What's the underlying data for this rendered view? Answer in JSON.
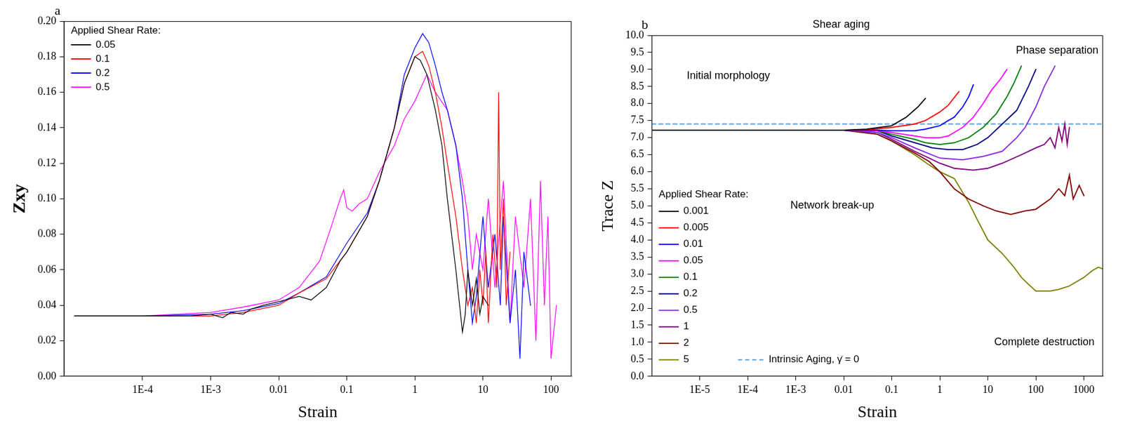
{
  "chart_data": [
    {
      "type": "line",
      "panel_label": "a",
      "x_label": "Strain",
      "y_label": "Zxy",
      "legend_title": "Applied Shear Rate:",
      "log": "x",
      "grid": false,
      "legend": "upper left",
      "xlim": [
        7e-06,
        200
      ],
      "xticks": [
        {
          "value": 0.0001,
          "label": "1E-4"
        },
        {
          "value": 0.001,
          "label": "1E-3"
        },
        0.01,
        0.1,
        1,
        10,
        100
      ],
      "ylim": [
        0,
        0.2
      ],
      "yticks": [
        {
          "value": 0,
          "label": "0.00"
        },
        0.02,
        0.04,
        0.06,
        0.08,
        {
          "value": 0.1,
          "label": "0.10"
        },
        0.12,
        0.14,
        0.16,
        0.18,
        {
          "value": 0.2,
          "label": "0.20"
        }
      ],
      "series": [
        {
          "name": "0.05",
          "color": "#000000",
          "x": [
            1e-05,
            0.0001,
            0.0005,
            0.001,
            0.0015,
            0.002,
            0.003,
            0.004,
            0.006,
            0.01,
            0.02,
            0.03,
            0.05,
            0.08,
            0.1,
            0.2,
            0.3,
            0.5,
            0.7,
            1.0,
            1.2,
            1.5,
            2,
            2.5,
            3,
            4,
            5,
            5.5,
            6,
            7,
            8,
            9,
            10,
            12
          ],
          "values": [
            0.034,
            0.034,
            0.034,
            0.035,
            0.033,
            0.036,
            0.035,
            0.038,
            0.04,
            0.042,
            0.045,
            0.043,
            0.05,
            0.065,
            0.07,
            0.09,
            0.11,
            0.14,
            0.165,
            0.18,
            0.178,
            0.17,
            0.15,
            0.13,
            0.1,
            0.06,
            0.025,
            0.035,
            0.06,
            0.04,
            0.055,
            0.035,
            0.045,
            0.04
          ]
        },
        {
          "name": "0.1",
          "color": "#ff0000",
          "x": [
            1e-05,
            0.0001,
            0.001,
            0.003,
            0.01,
            0.02,
            0.05,
            0.1,
            0.2,
            0.3,
            0.5,
            0.7,
            1.0,
            1.3,
            1.6,
            2,
            2.5,
            3,
            4,
            5,
            6,
            7,
            8,
            9,
            10,
            11,
            12,
            14,
            16,
            17,
            18,
            20,
            22,
            25
          ],
          "values": [
            0.034,
            0.034,
            0.034,
            0.036,
            0.04,
            0.047,
            0.055,
            0.07,
            0.09,
            0.11,
            0.14,
            0.165,
            0.18,
            0.183,
            0.175,
            0.16,
            0.14,
            0.12,
            0.09,
            0.06,
            0.04,
            0.05,
            0.03,
            0.06,
            0.04,
            0.07,
            0.03,
            0.08,
            0.05,
            0.16,
            0.06,
            0.1,
            0.04,
            0.07
          ]
        },
        {
          "name": "0.2",
          "color": "#0000ff",
          "x": [
            1e-05,
            0.0001,
            0.001,
            0.003,
            0.01,
            0.02,
            0.05,
            0.1,
            0.2,
            0.3,
            0.5,
            0.7,
            1.0,
            1.3,
            1.6,
            2,
            2.5,
            3,
            4,
            5,
            6,
            7,
            8,
            10,
            12,
            15,
            18,
            20,
            25,
            30,
            35,
            40,
            50
          ],
          "values": [
            0.034,
            0.034,
            0.035,
            0.037,
            0.041,
            0.047,
            0.056,
            0.075,
            0.092,
            0.11,
            0.14,
            0.17,
            0.185,
            0.193,
            0.188,
            0.175,
            0.16,
            0.15,
            0.13,
            0.1,
            0.06,
            0.03,
            0.045,
            0.09,
            0.05,
            0.08,
            0.04,
            0.09,
            0.03,
            0.06,
            0.01,
            0.07,
            0.04
          ]
        },
        {
          "name": "0.5",
          "color": "#ff00ff",
          "x": [
            1e-05,
            0.0001,
            0.001,
            0.003,
            0.01,
            0.02,
            0.04,
            0.06,
            0.08,
            0.09,
            0.1,
            0.12,
            0.15,
            0.2,
            0.3,
            0.5,
            0.7,
            1.0,
            1.5,
            2,
            3,
            4,
            5,
            6,
            7,
            8,
            10,
            12,
            15,
            20,
            25,
            30,
            40,
            50,
            60,
            70,
            80,
            90,
            100,
            120
          ],
          "values": [
            0.034,
            0.034,
            0.036,
            0.039,
            0.043,
            0.05,
            0.065,
            0.085,
            0.1,
            0.105,
            0.095,
            0.093,
            0.097,
            0.1,
            0.115,
            0.13,
            0.145,
            0.155,
            0.17,
            0.16,
            0.15,
            0.13,
            0.11,
            0.09,
            0.06,
            0.08,
            0.06,
            0.1,
            0.05,
            0.11,
            0.03,
            0.09,
            0.05,
            0.1,
            0.02,
            0.11,
            0.04,
            0.09,
            0.01,
            0.04
          ]
        }
      ]
    },
    {
      "type": "line",
      "panel_label": "b",
      "x_label": "Strain",
      "y_label": "Trace Z",
      "legend_title": "Applied Shear Rate:",
      "log": "x",
      "grid": false,
      "legend": "lower left",
      "annotations": [
        "Initial morphology",
        "Shear aging",
        "Phase separation",
        "Network break-up",
        "Complete destruction"
      ],
      "xlim": [
        1e-06,
        2500
      ],
      "xticks": [
        {
          "value": 1e-05,
          "label": "1E-5"
        },
        {
          "value": 0.0001,
          "label": "1E-4"
        },
        {
          "value": 0.001,
          "label": "1E-3"
        },
        0.01,
        0.1,
        1,
        10,
        100,
        1000
      ],
      "ylim": [
        0,
        10
      ],
      "yticks": [
        {
          "value": 0,
          "label": "0.0"
        },
        0.5,
        {
          "value": 1,
          "label": "1.0"
        },
        1.5,
        {
          "value": 2,
          "label": "2.0"
        },
        2.5,
        {
          "value": 3,
          "label": "3.0"
        },
        3.5,
        {
          "value": 4,
          "label": "4.0"
        },
        4.5,
        {
          "value": 5,
          "label": "5.0"
        },
        5.5,
        {
          "value": 6,
          "label": "6.0"
        },
        6.5,
        {
          "value": 7,
          "label": "7.0"
        },
        7.5,
        {
          "value": 8,
          "label": "8.0"
        },
        8.5,
        {
          "value": 9,
          "label": "9.0"
        },
        9.5,
        {
          "value": 10,
          "label": "10.0"
        }
      ],
      "series": [
        {
          "name": "0.001",
          "color": "#000000",
          "x": [
            1e-06,
            1e-05,
            0.0001,
            0.001,
            0.01,
            0.03,
            0.1,
            0.2,
            0.35,
            0.5
          ],
          "values": [
            7.22,
            7.22,
            7.22,
            7.22,
            7.22,
            7.25,
            7.35,
            7.6,
            7.9,
            8.15
          ]
        },
        {
          "name": "0.005",
          "color": "#ff0000",
          "x": [
            1e-06,
            1e-05,
            0.0001,
            0.001,
            0.01,
            0.03,
            0.1,
            0.3,
            0.5,
            1,
            1.5,
            2.5
          ],
          "values": [
            7.22,
            7.22,
            7.22,
            7.22,
            7.22,
            7.23,
            7.3,
            7.4,
            7.5,
            7.75,
            7.95,
            8.35
          ]
        },
        {
          "name": "0.01",
          "color": "#0000ff",
          "x": [
            1e-06,
            1e-05,
            0.0001,
            0.001,
            0.01,
            0.05,
            0.1,
            0.3,
            0.5,
            1,
            1.5,
            2,
            3,
            4,
            5
          ],
          "values": [
            7.22,
            7.22,
            7.22,
            7.22,
            7.22,
            7.22,
            7.2,
            7.2,
            7.25,
            7.35,
            7.5,
            7.6,
            7.9,
            8.2,
            8.55
          ]
        },
        {
          "name": "0.05",
          "color": "#ff00ff",
          "x": [
            1e-06,
            1e-05,
            0.0001,
            0.001,
            0.01,
            0.05,
            0.1,
            0.3,
            0.5,
            1,
            1.5,
            3,
            5,
            8,
            12,
            18,
            25
          ],
          "values": [
            7.22,
            7.22,
            7.22,
            7.22,
            7.22,
            7.2,
            7.15,
            7.05,
            7.0,
            7.0,
            7.05,
            7.3,
            7.6,
            8.0,
            8.4,
            8.7,
            9.0
          ]
        },
        {
          "name": "0.1",
          "color": "#008000",
          "x": [
            1e-06,
            1e-05,
            0.0001,
            0.001,
            0.01,
            0.05,
            0.1,
            0.3,
            0.5,
            1,
            2,
            4,
            8,
            15,
            25,
            35,
            50
          ],
          "values": [
            7.22,
            7.22,
            7.22,
            7.22,
            7.22,
            7.2,
            7.1,
            6.95,
            6.85,
            6.8,
            6.85,
            7.0,
            7.3,
            7.7,
            8.2,
            8.6,
            9.1
          ]
        },
        {
          "name": "0.2",
          "color": "#000080",
          "x": [
            1e-06,
            1e-05,
            0.0001,
            0.001,
            0.01,
            0.05,
            0.1,
            0.3,
            0.7,
            1.5,
            3,
            6,
            10,
            20,
            40,
            70,
            100
          ],
          "values": [
            7.22,
            7.22,
            7.22,
            7.22,
            7.22,
            7.2,
            7.05,
            6.85,
            6.7,
            6.65,
            6.65,
            6.8,
            7.0,
            7.4,
            7.8,
            8.5,
            9.0
          ]
        },
        {
          "name": "0.5",
          "color": "#8a2be2",
          "x": [
            1e-06,
            1e-05,
            0.0001,
            0.001,
            0.01,
            0.05,
            0.1,
            0.3,
            1,
            3,
            8,
            20,
            40,
            60,
            100,
            150,
            250
          ],
          "values": [
            7.22,
            7.22,
            7.22,
            7.22,
            7.22,
            7.15,
            7.0,
            6.7,
            6.4,
            6.35,
            6.45,
            6.6,
            7.0,
            7.3,
            7.9,
            8.5,
            9.1
          ]
        },
        {
          "name": "1",
          "color": "#800080",
          "x": [
            1e-06,
            1e-05,
            0.0001,
            0.001,
            0.01,
            0.05,
            0.1,
            0.3,
            0.6,
            1,
            2,
            5,
            10,
            20,
            50,
            100,
            150,
            200,
            250,
            300,
            350,
            400,
            450,
            500
          ],
          "values": [
            7.22,
            7.22,
            7.22,
            7.22,
            7.22,
            7.15,
            6.95,
            6.6,
            6.4,
            6.25,
            6.1,
            6.05,
            6.1,
            6.25,
            6.5,
            6.7,
            6.8,
            7.0,
            6.7,
            7.3,
            6.9,
            7.4,
            6.8,
            7.3
          ]
        },
        {
          "name": "2",
          "color": "#800000",
          "x": [
            1e-06,
            1e-05,
            0.0001,
            0.001,
            0.01,
            0.05,
            0.1,
            0.3,
            0.6,
            1,
            2,
            4,
            8,
            15,
            30,
            60,
            100,
            200,
            300,
            400,
            500,
            600,
            800,
            1000
          ],
          "values": [
            7.22,
            7.22,
            7.22,
            7.22,
            7.22,
            7.1,
            6.9,
            6.55,
            6.3,
            6.0,
            5.5,
            5.2,
            5.0,
            4.85,
            4.75,
            4.85,
            4.9,
            5.2,
            5.5,
            5.3,
            5.9,
            5.2,
            5.6,
            5.3
          ]
        },
        {
          "name": "5",
          "color": "#808000",
          "x": [
            1e-06,
            1e-05,
            0.0001,
            0.001,
            0.01,
            0.05,
            0.1,
            0.3,
            0.6,
            1,
            2,
            4,
            6,
            10,
            20,
            35,
            50,
            70,
            100,
            200,
            300,
            500,
            1000,
            1500,
            2000,
            2500
          ],
          "values": [
            7.22,
            7.22,
            7.22,
            7.22,
            7.22,
            7.1,
            6.9,
            6.5,
            6.2,
            6.0,
            5.8,
            5.1,
            4.6,
            4.0,
            3.6,
            3.2,
            2.9,
            2.7,
            2.5,
            2.5,
            2.55,
            2.65,
            2.9,
            3.1,
            3.2,
            3.15
          ]
        },
        {
          "name": "Intrinsic Aging, γ̇ = 0",
          "color": "#5b9bd5",
          "line_style": "dashed",
          "x": [
            1e-06,
            2500
          ],
          "values": [
            7.4,
            7.4
          ]
        }
      ]
    }
  ]
}
